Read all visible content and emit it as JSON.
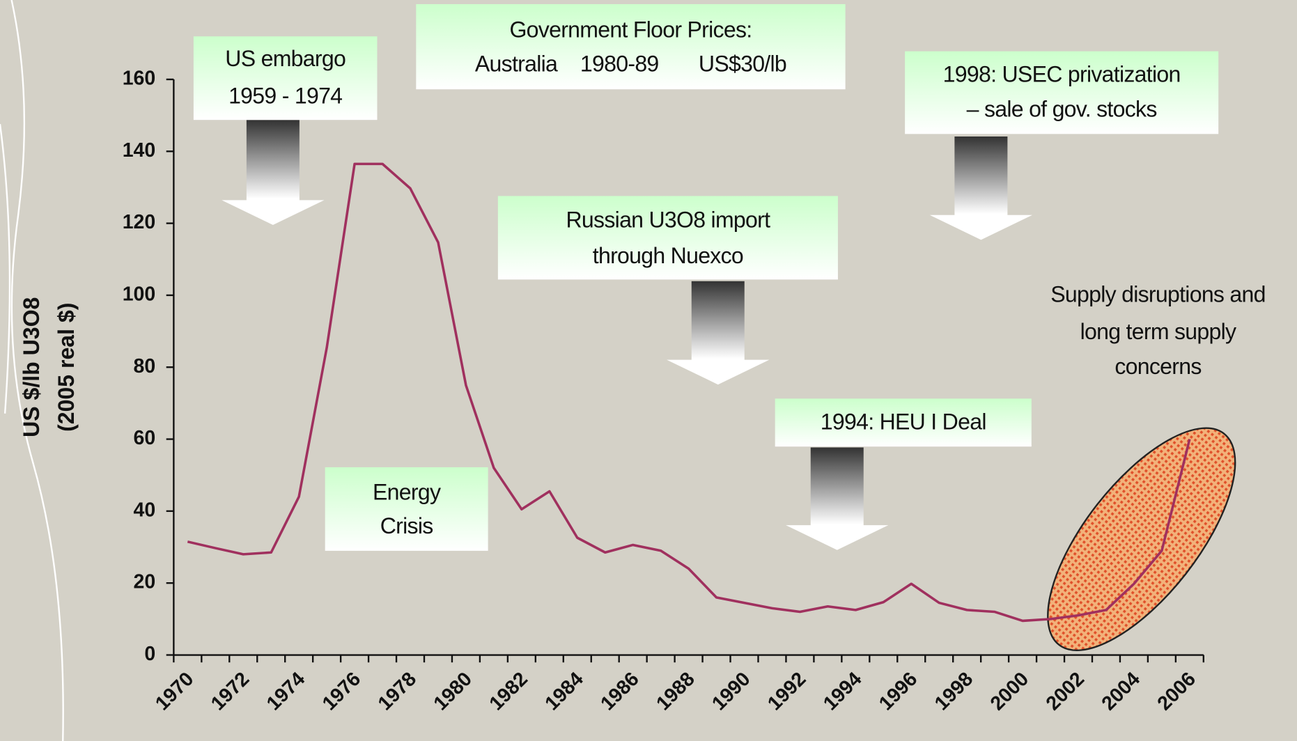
{
  "chart_data": {
    "type": "line",
    "y_label": [
      "US $/lb U3O8",
      "(2005 real $)"
    ],
    "categories": [
      "1970",
      null,
      "1972",
      null,
      "1974",
      null,
      "1976",
      null,
      "1978",
      null,
      "1980",
      null,
      "1982",
      null,
      "1984",
      null,
      "1986",
      null,
      "1988",
      null,
      "1990",
      null,
      "1992",
      null,
      "1994",
      null,
      "1996",
      null,
      "1998",
      null,
      "2000",
      null,
      "2002",
      null,
      "2004",
      null,
      "2006"
    ],
    "values": [
      31.5,
      29.7,
      28,
      28.5,
      44,
      85.5,
      136.5,
      136.5,
      129.7,
      114.7,
      75,
      52,
      40.5,
      45.5,
      32.6,
      28.5,
      30.6,
      29,
      24,
      16,
      14.5,
      13,
      12,
      13.5,
      12.5,
      14.7,
      19.8,
      14.5,
      12.5,
      12,
      9.5,
      10,
      11,
      12.5,
      19.8,
      29,
      60
    ],
    "color": "#a0305e",
    "ylim": [
      0,
      160
    ],
    "yticks": [
      0,
      20,
      40,
      60,
      80,
      100,
      120,
      140,
      160
    ],
    "annotations": [
      {
        "lines": [
          "US embargo",
          "1959 - 1974"
        ]
      },
      {
        "lines": [
          "Government Floor Prices:",
          "Australia    1980-89       US$30/lb"
        ]
      },
      {
        "lines": [
          "1998: USEC privatization",
          "– sale of gov. stocks"
        ]
      },
      {
        "lines": [
          "Russian U3O8 import",
          "through Nuexco"
        ]
      },
      {
        "lines": [
          "1994: HEU I Deal"
        ]
      },
      {
        "lines": [
          "Energy",
          "Crisis"
        ]
      },
      {
        "lines": [
          "Supply disruptions and",
          "long term supply",
          "concerns"
        ]
      }
    ]
  }
}
